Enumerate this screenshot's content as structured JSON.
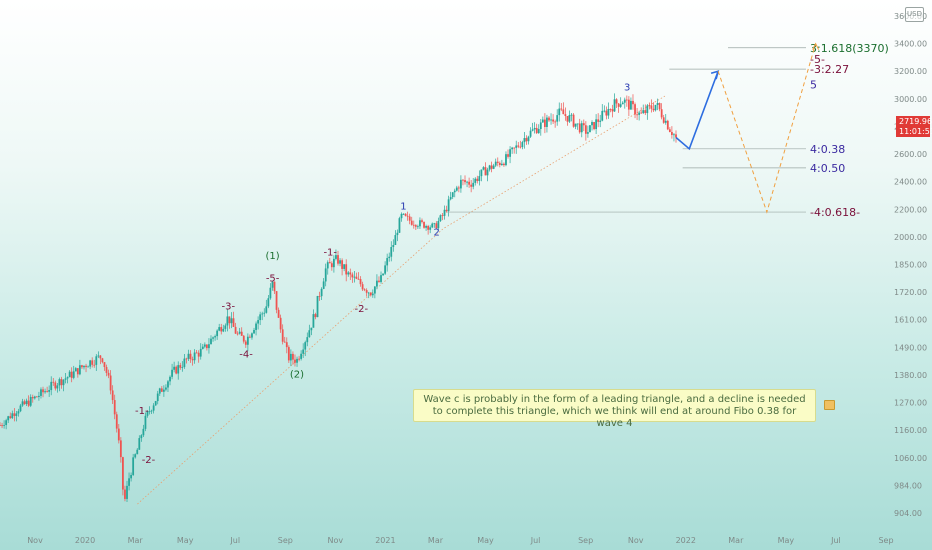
{
  "chart_data": {
    "type": "candlestick",
    "instrument_currency": "USD",
    "last_price": "2719.96",
    "countdown": "11:01:53",
    "x_ticks": [
      "Nov",
      "2020",
      "Mar",
      "May",
      "Jul",
      "Sep",
      "Nov",
      "2021",
      "Mar",
      "May",
      "Jul",
      "Sep",
      "Nov",
      "2022",
      "Mar",
      "May",
      "Jul",
      "Sep"
    ],
    "y_ticks": [
      "3600.00",
      "3400.00",
      "3200.00",
      "3000.00",
      "2800.00",
      "2600.00",
      "2400.00",
      "2200.00",
      "2000.00",
      "1850.00",
      "1720.00",
      "1610.00",
      "1490.00",
      "1380.00",
      "1270.00",
      "1160.00",
      "1060.00",
      "984.00",
      "904.00"
    ],
    "ylim": [
      860,
      3650
    ],
    "price_path": [
      [
        0,
        1180
      ],
      [
        0.8,
        1245
      ],
      [
        1.6,
        1290
      ],
      [
        2.4,
        1340
      ],
      [
        3.2,
        1380
      ],
      [
        4.0,
        1430
      ],
      [
        4.6,
        1455
      ],
      [
        5.0,
        1330
      ],
      [
        5.4,
        1090
      ],
      [
        5.6,
        930
      ],
      [
        5.8,
        1000
      ],
      [
        6.2,
        1090
      ],
      [
        6.6,
        1215
      ],
      [
        7.2,
        1310
      ],
      [
        7.8,
        1390
      ],
      [
        8.4,
        1440
      ],
      [
        9.2,
        1480
      ],
      [
        9.8,
        1560
      ],
      [
        10.3,
        1620
      ],
      [
        10.7,
        1545
      ],
      [
        11.1,
        1520
      ],
      [
        11.5,
        1590
      ],
      [
        12.0,
        1660
      ],
      [
        12.3,
        1760
      ],
      [
        12.6,
        1590
      ],
      [
        13.0,
        1450
      ],
      [
        13.4,
        1440
      ],
      [
        13.8,
        1530
      ],
      [
        14.2,
        1630
      ],
      [
        14.7,
        1830
      ],
      [
        15.2,
        1880
      ],
      [
        15.7,
        1800
      ],
      [
        16.2,
        1765
      ],
      [
        16.7,
        1720
      ],
      [
        17.2,
        1780
      ],
      [
        17.5,
        1880
      ],
      [
        17.8,
        1980
      ],
      [
        18.1,
        2150
      ],
      [
        18.6,
        2110
      ],
      [
        19.1,
        2090
      ],
      [
        19.6,
        2070
      ],
      [
        20.0,
        2160
      ],
      [
        20.4,
        2300
      ],
      [
        20.8,
        2400
      ],
      [
        21.3,
        2390
      ],
      [
        21.8,
        2470
      ],
      [
        22.3,
        2520
      ],
      [
        22.8,
        2560
      ],
      [
        23.3,
        2650
      ],
      [
        23.8,
        2740
      ],
      [
        24.3,
        2800
      ],
      [
        24.8,
        2850
      ],
      [
        25.3,
        2900
      ],
      [
        25.7,
        2860
      ],
      [
        26.1,
        2800
      ],
      [
        26.5,
        2760
      ],
      [
        26.9,
        2830
      ],
      [
        27.3,
        2900
      ],
      [
        27.7,
        2960
      ],
      [
        28.1,
        2990
      ],
      [
        28.5,
        2940
      ],
      [
        28.9,
        2880
      ],
      [
        29.3,
        2930
      ],
      [
        29.6,
        2960
      ],
      [
        29.9,
        2880
      ],
      [
        30.2,
        2790
      ],
      [
        30.5,
        2719.96
      ]
    ],
    "wave_labels": [
      {
        "text": "(1)",
        "x": 12.3,
        "y": 1880,
        "color": "#1a6e2e"
      },
      {
        "text": "-5-",
        "x": 12.3,
        "y": 1770,
        "color": "#7a0f3a"
      },
      {
        "text": "-3-",
        "x": 10.3,
        "y": 1650,
        "color": "#7a0f3a"
      },
      {
        "text": "-4-",
        "x": 11.1,
        "y": 1450,
        "color": "#7a0f3a"
      },
      {
        "text": "(2)",
        "x": 13.4,
        "y": 1370,
        "color": "#1a6e2e"
      },
      {
        "text": "-1-",
        "x": 6.4,
        "y": 1225,
        "color": "#7a0f3a"
      },
      {
        "text": "-2-",
        "x": 6.7,
        "y": 1045,
        "color": "#7a0f3a"
      },
      {
        "text": "-1-",
        "x": 14.9,
        "y": 1900,
        "color": "#7a0f3a"
      },
      {
        "text": "-2-",
        "x": 16.3,
        "y": 1640,
        "color": "#7a0f3a"
      },
      {
        "text": "1",
        "x": 18.2,
        "y": 2200,
        "color": "#2a3bb0"
      },
      {
        "text": "2",
        "x": 19.7,
        "y": 2010,
        "color": "#2a3bb0"
      },
      {
        "text": "3",
        "x": 28.3,
        "y": 3060,
        "color": "#2a3bb0"
      }
    ],
    "fib_levels": [
      {
        "label": "3:1.618(3370)",
        "price": 3370,
        "color": "#1a6e2e",
        "x_start": 33.0
      },
      {
        "label": "-3:2.27",
        "price": 3215,
        "color": "#7a0f3a",
        "x_start": 30.2
      },
      {
        "label": "4:0.38",
        "price": 2638,
        "color": "#3b2aa0",
        "x_start": 30.8
      },
      {
        "label": "4:0.50",
        "price": 2500,
        "color": "#3b2aa0",
        "x_start": 30.8
      },
      {
        "label": "-4:0.618-",
        "price": 2180,
        "color": "#7a0f3a",
        "x_start": 19.6
      }
    ],
    "projection_labels": [
      {
        "text": "-5-",
        "price": 3290,
        "color": "#7a0f3a"
      },
      {
        "text": "5",
        "price": 3105,
        "color": "#3b2aa0"
      }
    ],
    "projection_blue": [
      [
        30.5,
        2719.96
      ],
      [
        31.1,
        2638
      ],
      [
        32.4,
        3200
      ]
    ],
    "projection_orange": [
      [
        32.4,
        3200
      ],
      [
        34.6,
        2180
      ],
      [
        36.8,
        3400
      ]
    ],
    "trendline": [
      [
        6.2,
        930
      ],
      [
        20.0,
        2060
      ],
      [
        30.0,
        3020
      ]
    ]
  },
  "annotation_note": "Wave c is probably in the form of a leading triangle, and a decline is needed to complete this triangle, which we think will end at around Fibo 0.38 for wave 4"
}
